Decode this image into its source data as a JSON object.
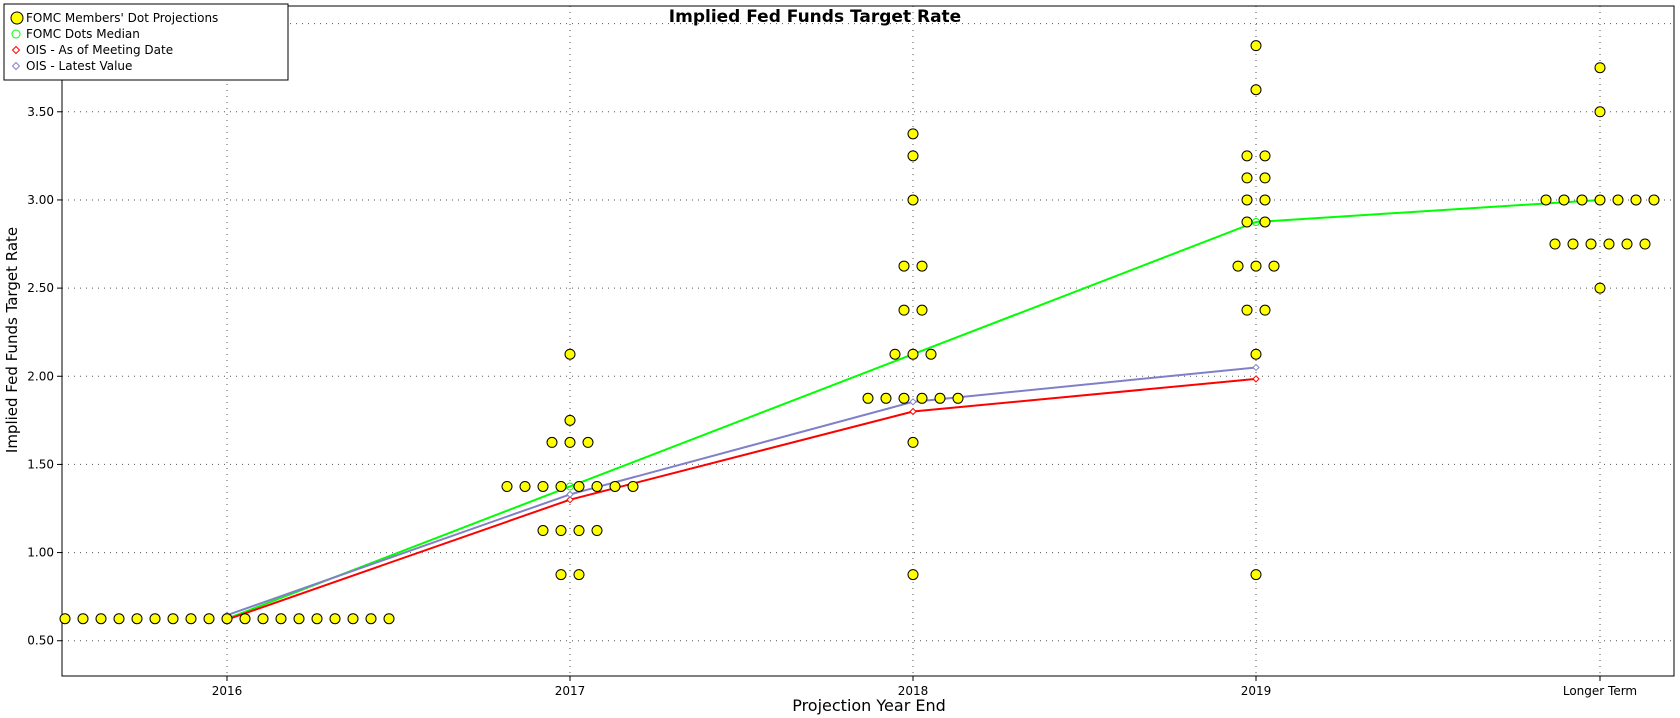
{
  "chart_data": {
    "type": "scatter",
    "title": "Implied Fed Funds Target Rate",
    "xlabel": "Projection Year End",
    "ylabel": "Implied Fed Funds Target Rate",
    "categories": [
      "2016",
      "2017",
      "2018",
      "2019",
      "Longer Term"
    ],
    "ylim": [
      0.3,
      4.1
    ],
    "yticks": [
      "0.50",
      "1.00",
      "1.50",
      "2.00",
      "2.50",
      "3.00",
      "3.50",
      "4.00"
    ],
    "grid": true,
    "legend_position": "top-left",
    "legend": [
      {
        "label": "FOMC Members' Dot Projections",
        "marker": "dot",
        "color": "#ffff00"
      },
      {
        "label": "FOMC Dots Median",
        "marker": "circle",
        "color": "#00ff00"
      },
      {
        "label": "OIS - As of Meeting Date",
        "marker": "diamond",
        "color": "#ff0000"
      },
      {
        "label": "OIS - Latest Value",
        "marker": "diamond",
        "color": "#8080c8"
      }
    ],
    "dots": [
      {
        "category": "2016",
        "values": [
          0.625,
          0.625,
          0.625,
          0.625,
          0.625,
          0.625,
          0.625,
          0.625,
          0.625,
          0.625,
          0.625,
          0.625,
          0.625,
          0.625,
          0.625,
          0.625,
          0.625,
          0.625,
          0.625
        ]
      },
      {
        "category": "2017",
        "values": [
          2.125,
          1.75,
          1.625,
          1.625,
          1.625,
          1.375,
          1.375,
          1.375,
          1.375,
          1.375,
          1.375,
          1.375,
          1.375,
          1.125,
          1.125,
          1.125,
          1.125,
          0.875,
          0.875
        ]
      },
      {
        "category": "2018",
        "values": [
          3.375,
          3.25,
          3.0,
          2.625,
          2.625,
          2.375,
          2.375,
          2.125,
          2.125,
          2.125,
          1.875,
          1.875,
          1.875,
          1.875,
          1.875,
          1.875,
          1.625,
          0.875
        ]
      },
      {
        "category": "2019",
        "values": [
          3.875,
          3.625,
          3.25,
          3.25,
          3.125,
          3.125,
          3.0,
          3.0,
          2.875,
          2.875,
          2.625,
          2.625,
          2.625,
          2.375,
          2.375,
          2.125,
          0.875
        ]
      },
      {
        "category": "Longer Term",
        "values": [
          3.75,
          3.5,
          3.0,
          3.0,
          3.0,
          3.0,
          3.0,
          3.0,
          3.0,
          2.75,
          2.75,
          2.75,
          2.75,
          2.75,
          2.75,
          2.5
        ]
      }
    ],
    "series": [
      {
        "name": "FOMC Dots Median",
        "color": "#00ff00",
        "values": [
          0.625,
          1.375,
          2.125,
          2.875,
          3.0
        ]
      },
      {
        "name": "OIS - As of Meeting Date",
        "color": "#ff0000",
        "values": [
          0.62,
          1.3,
          1.8,
          1.985,
          null
        ]
      },
      {
        "name": "OIS - Latest Value",
        "color": "#8080c8",
        "values": [
          0.645,
          1.33,
          1.855,
          2.05,
          null
        ]
      }
    ]
  }
}
